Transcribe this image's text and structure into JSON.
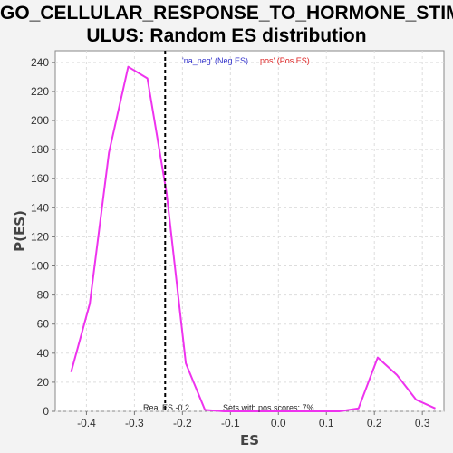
{
  "title": "GO_CELLULAR_RESPONSE_TO_HORMONE_STIM\nULUS: Random ES distribution",
  "chart_data": {
    "type": "line",
    "title": "GO_CELLULAR_RESPONSE_TO_HORMONE_STIMULUS: Random ES distribution",
    "xlabel": "ES",
    "ylabel": "P(ES)",
    "xlim": [
      -0.465,
      0.345
    ],
    "ylim": [
      0,
      248
    ],
    "xticks": [
      "-0.4",
      "-0.3",
      "-0.2",
      "-0.1",
      "0.0",
      "0.1",
      "0.2",
      "0.3"
    ],
    "xtick_values": [
      -0.4,
      -0.3,
      -0.2,
      -0.1,
      0.0,
      0.1,
      0.2,
      0.3
    ],
    "yticks": [
      "0",
      "20",
      "40",
      "60",
      "80",
      "100",
      "120",
      "140",
      "160",
      "180",
      "200",
      "220",
      "240"
    ],
    "ytick_values": [
      0,
      20,
      40,
      60,
      80,
      100,
      120,
      140,
      160,
      180,
      200,
      220,
      240
    ],
    "grid": true,
    "series": [
      {
        "name": "",
        "color": "#ee33ee",
        "x": [
          -0.432,
          -0.393,
          -0.353,
          -0.313,
          -0.273,
          -0.233,
          -0.193,
          -0.153,
          -0.113,
          -0.073,
          -0.033,
          0.007,
          0.047,
          0.087,
          0.127,
          0.167,
          0.207,
          0.247,
          0.287,
          0.327
        ],
        "y": [
          27,
          74,
          178,
          237,
          229,
          150,
          33,
          1,
          0,
          0,
          0,
          0,
          0,
          0,
          0,
          2,
          37,
          25,
          8,
          2
        ]
      }
    ],
    "real_es_line": {
      "x": -0.236,
      "color": "#000000"
    },
    "annotations": {
      "real_es": "Real ES -0.2",
      "sets_pos": "Sets with pos scores: 7%"
    },
    "legend": {
      "neg": "'na_neg' (Neg ES)",
      "neg_color": "#3333cc",
      "pos": "pos' (Pos ES)",
      "pos_color": "#dd2222",
      "position": "top"
    }
  }
}
